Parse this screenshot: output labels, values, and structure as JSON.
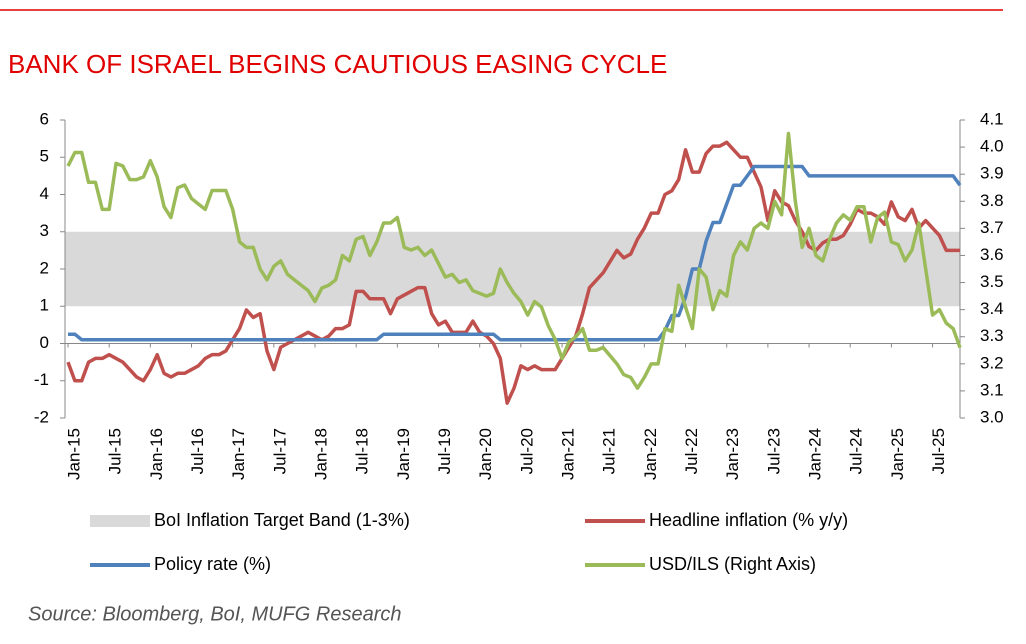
{
  "chart_data": {
    "type": "line",
    "title": "BANK OF ISRAEL BEGINS CAUTIOUS EASING CYCLE",
    "source": "Source: Bloomberg, BoI, MUFG Research",
    "categories": [
      "Jan-15",
      null,
      null,
      null,
      null,
      null,
      "Jul-15",
      null,
      null,
      null,
      null,
      null,
      "Jan-16",
      null,
      null,
      null,
      null,
      null,
      "Jul-16",
      null,
      null,
      null,
      null,
      null,
      "Jan-17",
      null,
      null,
      null,
      null,
      null,
      "Jul-17",
      null,
      null,
      null,
      null,
      null,
      "Jan-18",
      null,
      null,
      null,
      null,
      null,
      "Jul-18",
      null,
      null,
      null,
      null,
      null,
      "Jan-19",
      null,
      null,
      null,
      null,
      null,
      "Jul-19",
      null,
      null,
      null,
      null,
      null,
      "Jan-20",
      null,
      null,
      null,
      null,
      null,
      "Jul-20",
      null,
      null,
      null,
      null,
      null,
      "Jan-21",
      null,
      null,
      null,
      null,
      null,
      "Jul-21",
      null,
      null,
      null,
      null,
      null,
      "Jan-22",
      null,
      null,
      null,
      null,
      null,
      "Jul-22",
      null,
      null,
      null,
      null,
      null,
      "Jan-23",
      null,
      null,
      null,
      null,
      null,
      "Jul-23",
      null,
      null,
      null,
      null,
      null,
      "Jan-24",
      null,
      null,
      null,
      null,
      null,
      "Jul-24",
      null,
      null,
      null,
      null,
      null,
      "Jan-25",
      null,
      null,
      null,
      null,
      null,
      "Jul-25",
      null,
      null,
      null,
      null
    ],
    "band": {
      "name": "BoI Inflation Target Band (1-3%)",
      "range": [
        1,
        3
      ],
      "color": "#d9d9d9"
    },
    "series": [
      {
        "name": "Headline inflation (% y/y)",
        "color": "#c0504d",
        "values": [
          -0.5,
          -1.0,
          -1.0,
          -0.5,
          -0.4,
          -0.4,
          -0.3,
          -0.4,
          -0.5,
          -0.7,
          -0.9,
          -1.0,
          -0.7,
          -0.3,
          -0.8,
          -0.9,
          -0.8,
          -0.8,
          -0.7,
          -0.6,
          -0.4,
          -0.3,
          -0.3,
          -0.2,
          0.1,
          0.4,
          0.9,
          0.7,
          0.8,
          -0.2,
          -0.7,
          -0.1,
          0.0,
          0.1,
          0.2,
          0.3,
          0.2,
          0.1,
          0.2,
          0.4,
          0.4,
          0.5,
          1.4,
          1.4,
          1.2,
          1.2,
          1.2,
          0.8,
          1.2,
          1.3,
          1.4,
          1.5,
          1.5,
          0.8,
          0.5,
          0.6,
          0.3,
          0.3,
          0.3,
          0.6,
          0.3,
          0.2,
          0.0,
          -0.4,
          -1.6,
          -1.2,
          -0.6,
          -0.7,
          -0.6,
          -0.7,
          -0.7,
          -0.7,
          -0.4,
          -0.1,
          0.2,
          0.8,
          1.5,
          1.7,
          1.9,
          2.2,
          2.5,
          2.3,
          2.4,
          2.8,
          3.1,
          3.5,
          3.5,
          4.0,
          4.1,
          4.4,
          5.2,
          4.6,
          4.6,
          5.1,
          5.3,
          5.3,
          5.4,
          5.2,
          5.0,
          5.0,
          4.6,
          4.2,
          3.3,
          4.1,
          3.8,
          3.7,
          3.3,
          3.0,
          2.6,
          2.5,
          2.7,
          2.8,
          2.8,
          2.9,
          3.2,
          3.6,
          3.5,
          3.5,
          3.4,
          3.2,
          3.8,
          3.4,
          3.3,
          3.6,
          3.1,
          3.3,
          3.1,
          2.9,
          2.5,
          2.5,
          2.5
        ]
      },
      {
        "name": "Policy rate (%)",
        "color": "#4f81bd",
        "values": [
          0.25,
          0.25,
          0.1,
          0.1,
          0.1,
          0.1,
          0.1,
          0.1,
          0.1,
          0.1,
          0.1,
          0.1,
          0.1,
          0.1,
          0.1,
          0.1,
          0.1,
          0.1,
          0.1,
          0.1,
          0.1,
          0.1,
          0.1,
          0.1,
          0.1,
          0.1,
          0.1,
          0.1,
          0.1,
          0.1,
          0.1,
          0.1,
          0.1,
          0.1,
          0.1,
          0.1,
          0.1,
          0.1,
          0.1,
          0.1,
          0.1,
          0.1,
          0.1,
          0.1,
          0.1,
          0.1,
          0.25,
          0.25,
          0.25,
          0.25,
          0.25,
          0.25,
          0.25,
          0.25,
          0.25,
          0.25,
          0.25,
          0.25,
          0.25,
          0.25,
          0.25,
          0.25,
          0.25,
          0.1,
          0.1,
          0.1,
          0.1,
          0.1,
          0.1,
          0.1,
          0.1,
          0.1,
          0.1,
          0.1,
          0.1,
          0.1,
          0.1,
          0.1,
          0.1,
          0.1,
          0.1,
          0.1,
          0.1,
          0.1,
          0.1,
          0.1,
          0.1,
          0.35,
          0.75,
          0.75,
          1.25,
          2.0,
          2.0,
          2.75,
          3.25,
          3.25,
          3.75,
          4.25,
          4.25,
          4.5,
          4.75,
          4.75,
          4.75,
          4.75,
          4.75,
          4.75,
          4.75,
          4.75,
          4.5,
          4.5,
          4.5,
          4.5,
          4.5,
          4.5,
          4.5,
          4.5,
          4.5,
          4.5,
          4.5,
          4.5,
          4.5,
          4.5,
          4.5,
          4.5,
          4.5,
          4.5,
          4.5,
          4.5,
          4.5,
          4.5,
          4.25
        ]
      },
      {
        "name": "USD/ILS (Right Axis)",
        "color": "#9bbb59",
        "axis": "y2",
        "values": [
          3.93,
          3.98,
          3.98,
          3.87,
          3.87,
          3.77,
          3.77,
          3.94,
          3.93,
          3.88,
          3.88,
          3.89,
          3.95,
          3.89,
          3.78,
          3.74,
          3.85,
          3.86,
          3.81,
          3.79,
          3.77,
          3.84,
          3.84,
          3.84,
          3.77,
          3.65,
          3.63,
          3.63,
          3.55,
          3.51,
          3.56,
          3.58,
          3.53,
          3.51,
          3.49,
          3.47,
          3.43,
          3.48,
          3.49,
          3.51,
          3.6,
          3.58,
          3.66,
          3.67,
          3.6,
          3.65,
          3.72,
          3.72,
          3.74,
          3.63,
          3.62,
          3.63,
          3.6,
          3.62,
          3.57,
          3.52,
          3.53,
          3.5,
          3.51,
          3.47,
          3.46,
          3.45,
          3.46,
          3.55,
          3.5,
          3.46,
          3.43,
          3.38,
          3.43,
          3.41,
          3.34,
          3.29,
          3.22,
          3.28,
          3.3,
          3.33,
          3.25,
          3.25,
          3.26,
          3.23,
          3.2,
          3.16,
          3.15,
          3.11,
          3.15,
          3.2,
          3.2,
          3.33,
          3.32,
          3.49,
          3.41,
          3.33,
          3.55,
          3.52,
          3.4,
          3.47,
          3.45,
          3.6,
          3.65,
          3.62,
          3.7,
          3.72,
          3.7,
          3.8,
          3.75,
          4.05,
          3.8,
          3.63,
          3.7,
          3.6,
          3.58,
          3.66,
          3.72,
          3.75,
          3.73,
          3.78,
          3.78,
          3.65,
          3.74,
          3.76,
          3.65,
          3.64,
          3.58,
          3.62,
          3.72,
          3.55,
          3.38,
          3.4,
          3.35,
          3.33,
          3.26
        ]
      }
    ],
    "ylim": [
      -2,
      6
    ],
    "yticks": [
      -2,
      -1,
      0,
      1,
      2,
      3,
      4,
      5,
      6
    ],
    "y2lim": [
      3.0,
      4.1
    ],
    "y2ticks": [
      {
        "value": 3.0,
        "label": "3.0"
      },
      3.1,
      3.2,
      3.3,
      3.4,
      3.5,
      3.6,
      3.7,
      3.8,
      3.9,
      {
        "value": 4.0,
        "label": "4.0"
      },
      4.1
    ]
  }
}
